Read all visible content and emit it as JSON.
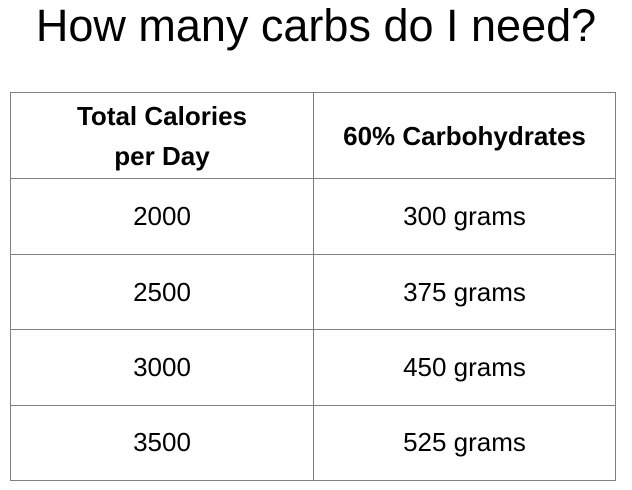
{
  "title": "How many carbs do I need?",
  "table": {
    "headers": {
      "col1_line1": "Total Calories",
      "col1_line2": "per Day",
      "col2": "60% Carbohydrates"
    },
    "rows": [
      {
        "calories": "2000",
        "carbs": "300 grams"
      },
      {
        "calories": "2500",
        "carbs": "375 grams"
      },
      {
        "calories": "3000",
        "carbs": "450 grams"
      },
      {
        "calories": "3500",
        "carbs": "525 grams"
      }
    ]
  }
}
